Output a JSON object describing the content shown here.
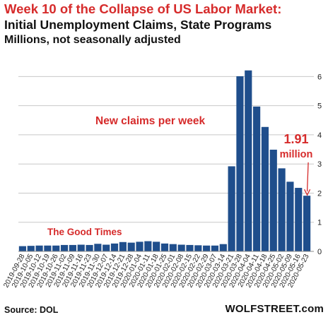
{
  "header": {
    "title": "Week 10 of the Collapse of US Labor Market:",
    "subtitle": "Initial Unemployment Claims, State Programs",
    "units": "Millions, not seasonally adjusted"
  },
  "annotations": {
    "series_label": "New claims per week",
    "good_times": "The Good Times",
    "last_value_line1": "1.91",
    "last_value_line2": "million"
  },
  "footer": {
    "source": "Source: DOL",
    "brand": "WOLFSTREET.com"
  },
  "colors": {
    "bar": "#1f4e8c",
    "accent": "#d62b2b",
    "grid": "#c8c8c8"
  },
  "chart_data": {
    "type": "bar",
    "title": "Week 10 of the Collapse of US Labor Market:",
    "ylabel": "",
    "xlabel": "",
    "ylim": [
      0,
      6.3
    ],
    "yticks": [
      0,
      1,
      2,
      3,
      4,
      5,
      6
    ],
    "grid": true,
    "categories": [
      "2019-09-28",
      "2019-10-05",
      "2019-10-12",
      "2019-10-19",
      "2019-10-26",
      "2019-11-02",
      "2019-11-09",
      "2019-11-16",
      "2019-11-23",
      "2019-11-30",
      "2019-12-07",
      "2019-12-14",
      "2019-12-21",
      "2019-12-28",
      "2020-01-04",
      "2020-01-11",
      "2020-01-18",
      "2020-01-25",
      "2020-02-01",
      "2020-02-08",
      "2020-02-15",
      "2020-02-22",
      "2020-02-29",
      "2020-03-07",
      "2020-03-14",
      "2020-03-21",
      "2020-03-28",
      "2020-04-04",
      "2020-04-11",
      "2020-04-18",
      "2020-04-25",
      "2020-05-02",
      "2020-05-09",
      "2020-05-16",
      "2020-05-23"
    ],
    "tick_labels": [
      "2019-09-28",
      "2019-10-05",
      "2019-10-12",
      "2019-10-19",
      "2019-10-26",
      "2019-11-02",
      "2019-11-09",
      "2019-11-16",
      "2019-11-23",
      "2019-11-30",
      "2019-12-07",
      "2019-12-14",
      "2019-12-21",
      "2019-12-28",
      "2020-01-04",
      "2020-01-11",
      "2020-01-18",
      "2020-01-25",
      "2020-02-01",
      "2020-02-08",
      "2020-02-15",
      "2020-02-22",
      "2020-02-29",
      "2020-03-07",
      "2020-03-14",
      "2020-03-21",
      "2020-03-28",
      "2020-04-04",
      "2020-04-11",
      "2020-04-18",
      "2020-04-25",
      "2020-05-02",
      "2020-05-09",
      "2020-05-16",
      "2020-05-23"
    ],
    "series": [
      {
        "values": [
          0.18,
          0.19,
          0.2,
          0.2,
          0.2,
          0.22,
          0.22,
          0.23,
          0.22,
          0.26,
          0.23,
          0.27,
          0.32,
          0.3,
          0.33,
          0.35,
          0.33,
          0.27,
          0.25,
          0.23,
          0.22,
          0.21,
          0.2,
          0.2,
          0.25,
          2.92,
          6.01,
          6.21,
          4.97,
          4.27,
          3.49,
          2.85,
          2.39,
          2.18,
          1.91
        ]
      }
    ]
  }
}
